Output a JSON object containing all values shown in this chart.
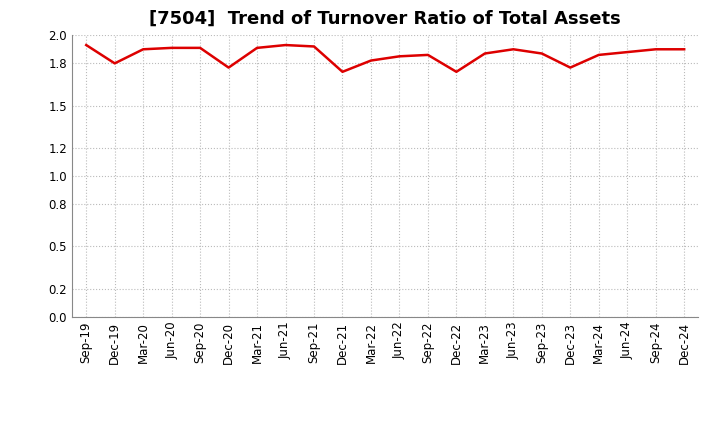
{
  "title": "[7504]  Trend of Turnover Ratio of Total Assets",
  "x_labels": [
    "Sep-19",
    "Dec-19",
    "Mar-20",
    "Jun-20",
    "Sep-20",
    "Dec-20",
    "Mar-21",
    "Jun-21",
    "Sep-21",
    "Dec-21",
    "Mar-22",
    "Jun-22",
    "Sep-22",
    "Dec-22",
    "Mar-23",
    "Jun-23",
    "Sep-23",
    "Dec-23",
    "Mar-24",
    "Jun-24",
    "Sep-24",
    "Dec-24"
  ],
  "y_values": [
    1.93,
    1.8,
    1.9,
    1.91,
    1.91,
    1.77,
    1.91,
    1.93,
    1.92,
    1.74,
    1.82,
    1.85,
    1.86,
    1.74,
    1.87,
    1.9,
    1.87,
    1.77,
    1.86,
    1.88,
    1.9,
    1.9
  ],
  "line_color": "#dd0000",
  "line_width": 1.8,
  "ylim": [
    0.0,
    2.0
  ],
  "yticks": [
    0.0,
    0.2,
    0.5,
    0.8,
    1.0,
    1.2,
    1.5,
    1.8,
    2.0
  ],
  "bg_color": "#ffffff",
  "plot_bg_color": "#ffffff",
  "grid_color": "#bbbbbb",
  "title_fontsize": 13,
  "tick_fontsize": 8.5
}
